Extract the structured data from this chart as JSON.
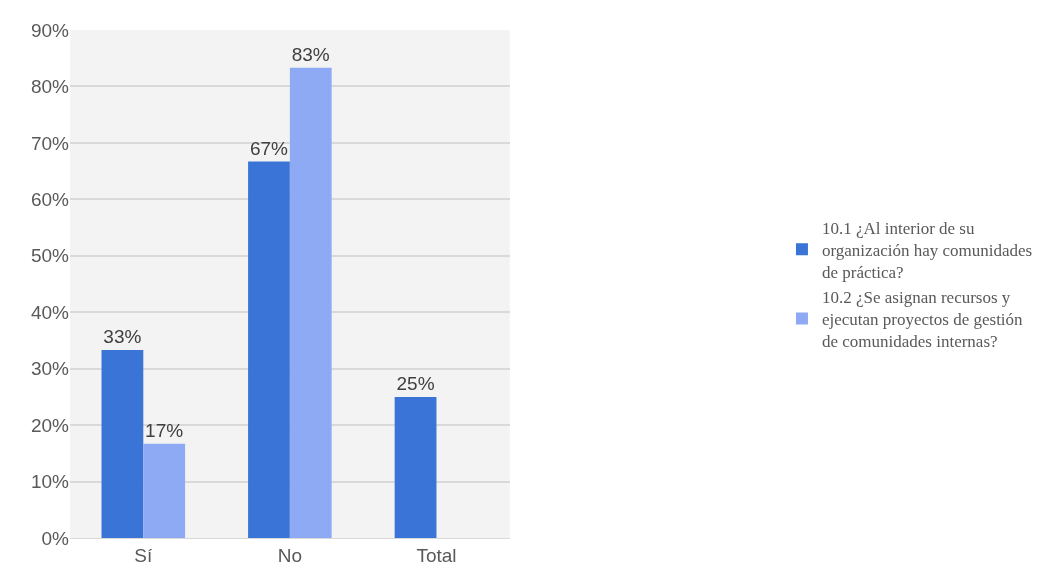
{
  "chart_data": {
    "type": "bar",
    "categories": [
      "Sí",
      "No",
      "Total"
    ],
    "series": [
      {
        "name": "10.1 ¿Al interior de su organización hay comunidades de práctica?",
        "color": "#3a74d6",
        "values": [
          33.3,
          66.7,
          25
        ],
        "value_labels": [
          "33%",
          "67%",
          "25%"
        ]
      },
      {
        "name": "10.2 ¿Se asignan recursos y ejecutan proyectos de gestión de comunidades internas?",
        "color": "#8faaf4",
        "values": [
          16.7,
          83.3,
          null
        ],
        "value_labels": [
          "17%",
          "83%",
          null
        ]
      }
    ],
    "ylim": [
      0,
      90
    ],
    "yticks": [
      {
        "value": 0,
        "label": "0%"
      },
      {
        "value": 10,
        "label": "10%"
      },
      {
        "value": 20,
        "label": "20%"
      },
      {
        "value": 30,
        "label": "30%"
      },
      {
        "value": 40,
        "label": "40%"
      },
      {
        "value": 50,
        "label": "50%"
      },
      {
        "value": 60,
        "label": "60%"
      },
      {
        "value": 70,
        "label": "70%"
      },
      {
        "value": 80,
        "label": "80%"
      },
      {
        "value": 90,
        "label": "90%"
      }
    ],
    "grid": "y",
    "legend": "right"
  }
}
